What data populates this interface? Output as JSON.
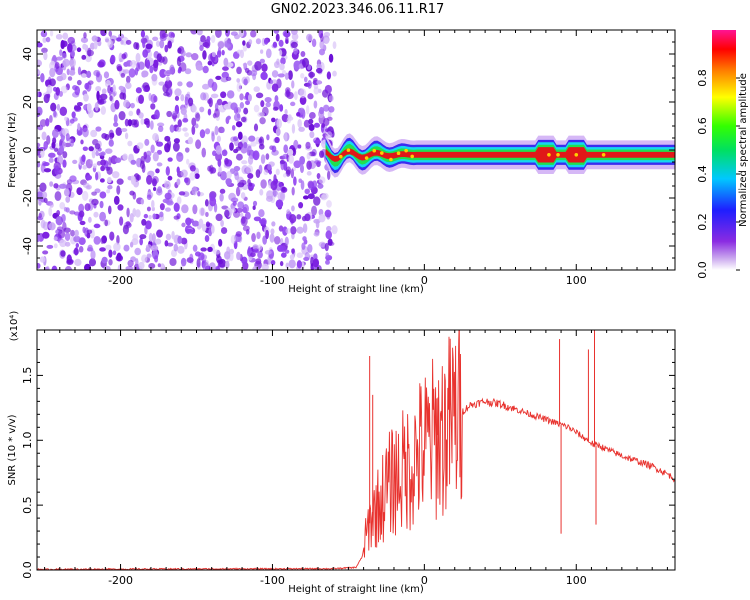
{
  "title": "GN02.2023.346.06.11.R17",
  "chart_data": [
    {
      "type": "heatmap",
      "title": "GN02.2023.346.06.11.R17",
      "xlabel": "Height of straight line (km)",
      "ylabel": "Frequency (Hz)",
      "xlim": [
        -255,
        165
      ],
      "ylim": [
        -50,
        50
      ],
      "xticks": [
        -200,
        -100,
        0,
        100
      ],
      "yticks": [
        -40,
        -20,
        0,
        20,
        40
      ],
      "colorbar": {
        "label": "Normalized spectral amplitude",
        "range": [
          0,
          1
        ],
        "ticks": [
          "0.0",
          "0.2",
          "0.4",
          "0.6",
          "0.8"
        ],
        "colormap": "rainbow (violet-blue-cyan-green-yellow-red-magenta)"
      },
      "features": {
        "noise_region_x": [
          -255,
          -65
        ],
        "signal_band_center_hz": -2,
        "signal_onset_km": -65
      },
      "grid": false
    },
    {
      "type": "line",
      "xlabel": "Height of straight line (km)",
      "ylabel": "SNR (10 * v/v)",
      "y_multiplier": "(x10⁴)",
      "xlim": [
        -255,
        165
      ],
      "ylim": [
        0,
        1.85
      ],
      "xticks": [
        -200,
        -100,
        0,
        100
      ],
      "yticks": [
        "0.0",
        "0.5",
        "1.0",
        "1.5"
      ],
      "ytick_values": [
        0,
        0.5,
        1.0,
        1.5
      ],
      "color": "#e8322e",
      "series": [
        {
          "x": [
            -255,
            -150,
            -60,
            -45,
            -41,
            -38,
            -35,
            -30,
            -25,
            -20,
            -15,
            -10,
            -5,
            0,
            5,
            10,
            15,
            20,
            25,
            30,
            40,
            50,
            60,
            70,
            80,
            90,
            95,
            100,
            105,
            110,
            112,
            115,
            120,
            130,
            140,
            150,
            160,
            165
          ],
          "values": [
            0.005,
            0.008,
            0.01,
            0.02,
            0.1,
            0.28,
            0.4,
            0.5,
            0.62,
            0.7,
            0.75,
            0.8,
            0.88,
            0.95,
            1.0,
            1.05,
            1.1,
            1.18,
            1.22,
            1.27,
            1.3,
            1.28,
            1.24,
            1.2,
            1.16,
            1.12,
            1.1,
            1.06,
            1.02,
            0.98,
            0.96,
            0.96,
            0.93,
            0.88,
            0.84,
            0.8,
            0.74,
            0.7
          ]
        }
      ],
      "spikes": [
        {
          "x": -36,
          "y": 1.65
        },
        {
          "x": -34,
          "y": 1.35
        },
        {
          "x": 9,
          "y": 1.33
        },
        {
          "x": 89,
          "y": 1.78
        },
        {
          "x": 108,
          "y": 1.7
        },
        {
          "x": 112,
          "y": 1.85
        },
        {
          "x": 113,
          "y": 0.35
        },
        {
          "x": 90,
          "y": 0.28
        }
      ],
      "grid": false
    }
  ]
}
